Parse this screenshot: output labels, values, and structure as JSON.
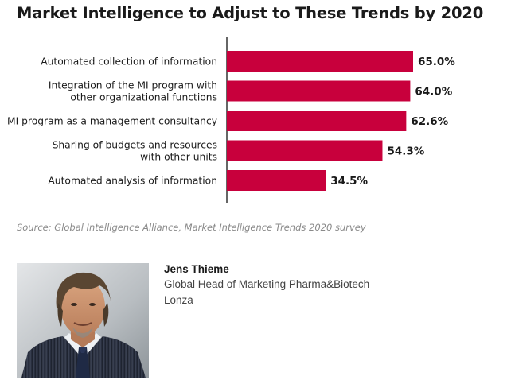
{
  "chart_data": {
    "type": "bar",
    "orientation": "horizontal",
    "title": "Market Intelligence to Adjust to These Trends by 2020",
    "categories": [
      [
        "Automated collection of information"
      ],
      [
        "Integration of the MI program with",
        "other organizational functions"
      ],
      [
        "MI program as a management consultancy"
      ],
      [
        "Sharing of budgets and resources",
        "with other units"
      ],
      [
        "Automated analysis of information"
      ]
    ],
    "values": [
      65.0,
      64.0,
      62.6,
      54.3,
      34.5
    ],
    "value_labels": [
      "65.0%",
      "64.0%",
      "62.6%",
      "54.3%",
      "34.5%"
    ],
    "xlim": [
      0,
      100
    ],
    "xlabel": "",
    "ylabel": "",
    "grid": false,
    "bar_color": "#c8003c",
    "axis_color": "#000000",
    "source": "Source: Global Intelligence Alliance, Market Intelligence Trends 2020 survey"
  },
  "profile": {
    "name": "Jens Thieme",
    "role": "Global Head of Marketing Pharma&Biotech",
    "company": "Lonza",
    "photo_icon": "portrait-photo"
  }
}
